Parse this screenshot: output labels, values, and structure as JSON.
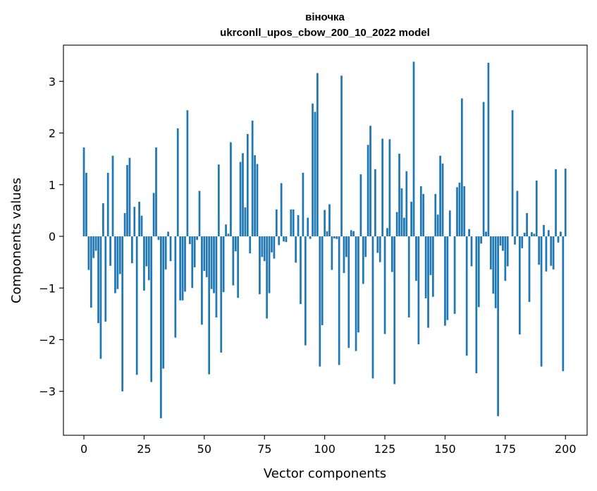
{
  "chart_data": {
    "type": "bar",
    "title": "віночка",
    "subtitle": "ukrconll_upos_cbow_200_10_2022 model",
    "xlabel": "Vector components",
    "ylabel": "Components values",
    "xlim": [
      -8.5,
      209
    ],
    "ylim": [
      -3.85,
      3.7
    ],
    "xticks": [
      0,
      25,
      50,
      75,
      100,
      125,
      150,
      175,
      200
    ],
    "yticks": [
      -3,
      -2,
      -1,
      0,
      1,
      2,
      3
    ],
    "xtick_labels": [
      "0",
      "25",
      "50",
      "75",
      "100",
      "125",
      "150",
      "175",
      "200"
    ],
    "ytick_labels": [
      "−3",
      "−2",
      "−1",
      "0",
      "1",
      "2",
      "3"
    ],
    "grid": false,
    "bar_color": "#1f77b4",
    "values": [
      1.72,
      1.23,
      -0.65,
      -1.38,
      -0.42,
      -0.28,
      -1.68,
      -2.37,
      0.64,
      -1.65,
      1.23,
      -0.57,
      1.56,
      -1.1,
      -1.02,
      -0.73,
      -3.0,
      0.45,
      1.38,
      1.52,
      -0.52,
      0.57,
      -2.68,
      0.67,
      0.4,
      -1.05,
      -0.58,
      -0.85,
      -2.82,
      0.84,
      1.72,
      -0.07,
      -3.52,
      -2.56,
      -0.64,
      0.09,
      -0.48,
      0.0,
      -1.96,
      2.09,
      -1.24,
      -1.24,
      -1.07,
      2.44,
      -0.15,
      -1.0,
      -0.6,
      -0.07,
      0.88,
      -1.71,
      -0.67,
      -0.79,
      -2.67,
      -1.02,
      -1.1,
      -1.57,
      1.39,
      -2.25,
      -1.08,
      0.23,
      0.05,
      1.82,
      -0.95,
      -0.29,
      -1.19,
      1.44,
      1.61,
      0.56,
      1.98,
      -0.33,
      2.24,
      1.57,
      1.4,
      -1.12,
      -0.4,
      -0.48,
      -1.59,
      -1.1,
      -0.31,
      -0.43,
      0.52,
      -0.17,
      1.03,
      -0.1,
      -0.11,
      0.0,
      0.52,
      0.52,
      -0.51,
      0.41,
      -1.31,
      1.23,
      -2.11,
      0.36,
      -0.05,
      2.57,
      2.41,
      3.16,
      -2.52,
      -1.72,
      0.51,
      0.1,
      0.62,
      -0.65,
      -0.04,
      -0.05,
      -2.49,
      3.11,
      -0.71,
      -0.4,
      -2.16,
      0.12,
      0.1,
      -2.22,
      -1.86,
      1.2,
      -0.92,
      -0.4,
      1.77,
      2.14,
      -2.75,
      1.3,
      -0.32,
      -0.5,
      1.89,
      -1.89,
      0.16,
      1.88,
      -0.69,
      -2.86,
      0.47,
      1.6,
      0.93,
      0.36,
      1.26,
      -1.57,
      0.67,
      3.38,
      -0.86,
      -2.09,
      0.97,
      0.82,
      -1.2,
      -1.77,
      -0.75,
      -1.17,
      0.82,
      0.42,
      1.56,
      1.41,
      -1.73,
      -1.62,
      0.5,
      0.0,
      -1.5,
      0.95,
      1.04,
      2.67,
      0.97,
      -2.31,
      0.14,
      -0.58,
      0.0,
      -2.65,
      -1.37,
      -0.14,
      2.6,
      0.09,
      3.36,
      -0.64,
      -1.11,
      -1.39,
      -3.48,
      -0.18,
      -0.28,
      -0.86,
      -0.58,
      0.0,
      2.44,
      -0.16,
      0.88,
      -1.9,
      -0.23,
      0.07,
      0.45,
      -1.27,
      0.08,
      0.05,
      1.08,
      -0.55,
      -2.52,
      0.22,
      -0.68,
      0.12,
      -0.57,
      -0.64,
      1.3,
      -0.12,
      0.09,
      -2.61,
      1.31
    ]
  }
}
